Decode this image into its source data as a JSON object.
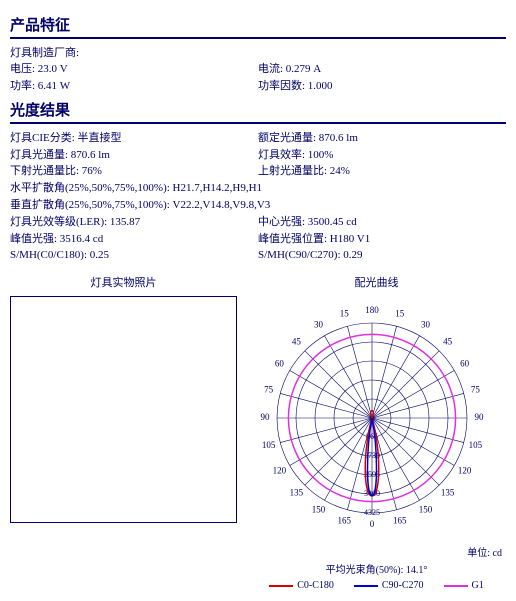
{
  "sections": {
    "product_title": "产品特征",
    "photometry_title": "光度结果",
    "photo_title": "灯具实物照片",
    "polar_title": "配光曲线"
  },
  "product": {
    "manufacturer_label": "灯具制造厂商:",
    "voltage": "电压: 23.0 V",
    "current": "电流: 0.279 A",
    "power": "功率: 6.41 W",
    "pf": "功率因数: 1.000"
  },
  "photometry": {
    "cie_class": "灯具CIE分类: 半直接型",
    "rated_flux": "额定光通量: 870.6 lm",
    "lum_flux": "灯具光通量: 870.6 lm",
    "efficiency": "灯具效率: 100%",
    "down_ratio": "下射光通量比: 76%",
    "up_ratio": "上射光通量比: 24%",
    "h_spread": "水平扩散角(25%,50%,75%,100%): H21.7,H14.2,H9,H1",
    "v_spread": "垂直扩散角(25%,50%,75%,100%): V22.2,V14.8,V9.8,V3",
    "ler": "灯具光效等级(LER): 135.87",
    "center_intensity": "中心光强: 3500.45 cd",
    "peak_intensity": "峰值光强: 3516.4 cd",
    "peak_pos": "峰值光强位置: H180 V1",
    "smh0": "S/MH(C0/C180): 0.25",
    "smh90": "S/MH(C90/C270): 0.29"
  },
  "polar": {
    "angle_labels": [
      "180",
      "165",
      "165",
      "150",
      "150",
      "135",
      "135",
      "120",
      "120",
      "105",
      "105",
      "90",
      "90",
      "75",
      "75",
      "60",
      "60",
      "45",
      "45",
      "30",
      "30",
      "15",
      "15",
      "0"
    ],
    "ring_values": [
      "865",
      "1730",
      "2595",
      "3460",
      "4325"
    ],
    "colors": {
      "c0": "#d40000",
      "c90": "#0000d4",
      "g1": "#e030e0",
      "grid": "#000066",
      "bg": "#ffffff"
    },
    "unit_label": "单位: cd",
    "avg_beam": "平均光束角(50%): 14.1°",
    "legend": {
      "c0": "C0-C180",
      "c90": "C90-C270",
      "g1": "G1"
    }
  }
}
